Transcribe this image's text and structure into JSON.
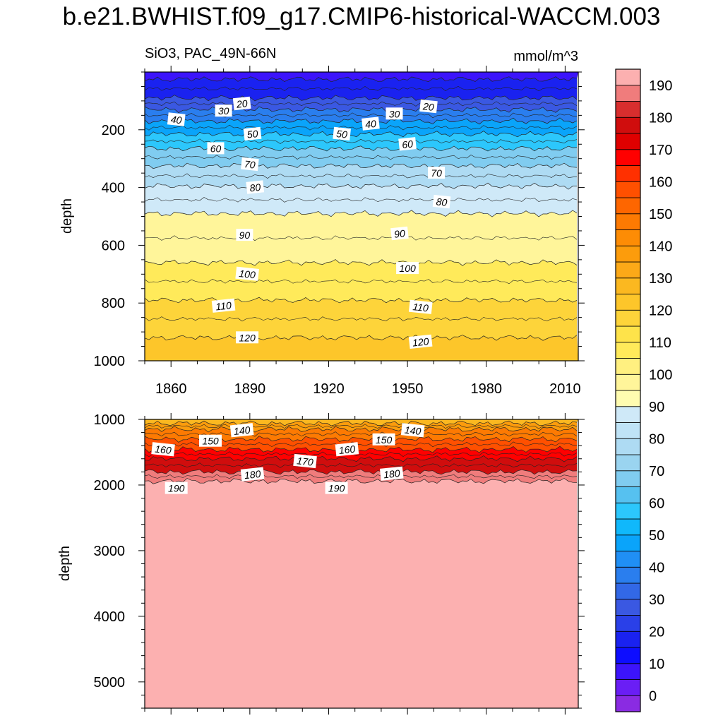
{
  "title": "b.e21.BWHIST.f09_g17.CMIP6-historical-WACCM.003",
  "chart_data": {
    "type": "heatmap",
    "subtitle_left": "SiO3, PAC_49N-66N",
    "units": "mmol/m^3",
    "x_label": "",
    "y_label": "depth",
    "x_ticks": [
      "1860",
      "1890",
      "1920",
      "1950",
      "1980",
      "2010"
    ],
    "x_range": [
      1850,
      2015
    ],
    "upper_panel": {
      "y_range": [
        0,
        1000
      ],
      "y_ticks": [
        "200",
        "400",
        "600",
        "800",
        "1000"
      ],
      "contour_depths": [
        {
          "value": 10,
          "depth": 25
        },
        {
          "value": 20,
          "depth": 90
        },
        {
          "value": 30,
          "depth": 130
        },
        {
          "value": 40,
          "depth": 170
        },
        {
          "value": 50,
          "depth": 215
        },
        {
          "value": 60,
          "depth": 265
        },
        {
          "value": 70,
          "depth": 325
        },
        {
          "value": 80,
          "depth": 395
        },
        {
          "value": 90,
          "depth": 490
        },
        {
          "value": 100,
          "depth": 660
        },
        {
          "value": 110,
          "depth": 790
        },
        {
          "value": 120,
          "depth": 920
        }
      ],
      "contour_labels": [
        {
          "text": "20",
          "year": 1887,
          "depth": 110
        },
        {
          "text": "30",
          "year": 1880,
          "depth": 135
        },
        {
          "text": "40",
          "year": 1862,
          "depth": 165
        },
        {
          "text": "50",
          "year": 1891,
          "depth": 215
        },
        {
          "text": "60",
          "year": 1877,
          "depth": 265
        },
        {
          "text": "70",
          "year": 1890,
          "depth": 320
        },
        {
          "text": "80",
          "year": 1892,
          "depth": 400
        },
        {
          "text": "90",
          "year": 1888,
          "depth": 565
        },
        {
          "text": "100",
          "year": 1889,
          "depth": 700
        },
        {
          "text": "110",
          "year": 1880,
          "depth": 810
        },
        {
          "text": "120",
          "year": 1889,
          "depth": 920
        },
        {
          "text": "50",
          "year": 1925,
          "depth": 215
        },
        {
          "text": "40",
          "year": 1936,
          "depth": 180
        },
        {
          "text": "30",
          "year": 1945,
          "depth": 145
        },
        {
          "text": "20",
          "year": 1958,
          "depth": 120
        },
        {
          "text": "60",
          "year": 1950,
          "depth": 250
        },
        {
          "text": "70",
          "year": 1961,
          "depth": 350
        },
        {
          "text": "80",
          "year": 1963,
          "depth": 450
        },
        {
          "text": "90",
          "year": 1947,
          "depth": 560
        },
        {
          "text": "100",
          "year": 1950,
          "depth": 680
        },
        {
          "text": "110",
          "year": 1955,
          "depth": 815
        },
        {
          "text": "120",
          "year": 1955,
          "depth": 935
        }
      ]
    },
    "lower_panel": {
      "y_range": [
        1000,
        5400
      ],
      "y_ticks": [
        "1000",
        "2000",
        "3000",
        "4000",
        "5000"
      ],
      "contour_depths": [
        {
          "value": 130,
          "depth": 1060
        },
        {
          "value": 140,
          "depth": 1150
        },
        {
          "value": 150,
          "depth": 1300
        },
        {
          "value": 160,
          "depth": 1460
        },
        {
          "value": 170,
          "depth": 1600
        },
        {
          "value": 180,
          "depth": 1800
        },
        {
          "value": 190,
          "depth": 1940
        }
      ],
      "contour_labels": [
        {
          "text": "140",
          "year": 1887,
          "depth": 1170
        },
        {
          "text": "150",
          "year": 1875,
          "depth": 1330
        },
        {
          "text": "160",
          "year": 1857,
          "depth": 1460
        },
        {
          "text": "180",
          "year": 1891,
          "depth": 1840
        },
        {
          "text": "190",
          "year": 1862,
          "depth": 2050
        },
        {
          "text": "170",
          "year": 1911,
          "depth": 1640
        },
        {
          "text": "160",
          "year": 1927,
          "depth": 1460
        },
        {
          "text": "150",
          "year": 1941,
          "depth": 1310
        },
        {
          "text": "140",
          "year": 1952,
          "depth": 1170
        },
        {
          "text": "180",
          "year": 1944,
          "depth": 1830
        },
        {
          "text": "190",
          "year": 1923,
          "depth": 2050
        }
      ]
    },
    "colorbar": {
      "levels": [
        -5,
        0,
        5,
        10,
        15,
        20,
        25,
        30,
        35,
        40,
        45,
        50,
        55,
        60,
        65,
        70,
        75,
        80,
        85,
        90,
        95,
        100,
        105,
        110,
        115,
        120,
        125,
        130,
        135,
        140,
        145,
        150,
        155,
        160,
        165,
        170,
        175,
        180,
        185,
        190,
        195
      ],
      "tick_labels": [
        "0",
        "10",
        "20",
        "30",
        "40",
        "50",
        "60",
        "70",
        "80",
        "90",
        "100",
        "110",
        "120",
        "130",
        "140",
        "150",
        "160",
        "170",
        "180",
        "190"
      ],
      "colors": [
        "#8a2be2",
        "#6a1ef5",
        "#3c14fb",
        "#0d0dff",
        "#1a22f0",
        "#2a40e8",
        "#3a58e2",
        "#3268e6",
        "#2a7eee",
        "#208ff5",
        "#0aa4fa",
        "#10b8fb",
        "#2cc7fc",
        "#56c1f0",
        "#80ccf0",
        "#9ad4f0",
        "#aedbf3",
        "#bfe3f6",
        "#cfe9f8",
        "#fffcb0",
        "#fff59a",
        "#fff080",
        "#ffea5a",
        "#fee34a",
        "#fdd43a",
        "#fdc62a",
        "#fbb820",
        "#fca918",
        "#fc9c0c",
        "#fd8c05",
        "#fd7a02",
        "#fe6600",
        "#ff5000",
        "#ff3000",
        "#ff0000",
        "#df0000",
        "#d00d0d",
        "#d82e2e",
        "#f07c7c",
        "#fcb0b0"
      ]
    }
  }
}
